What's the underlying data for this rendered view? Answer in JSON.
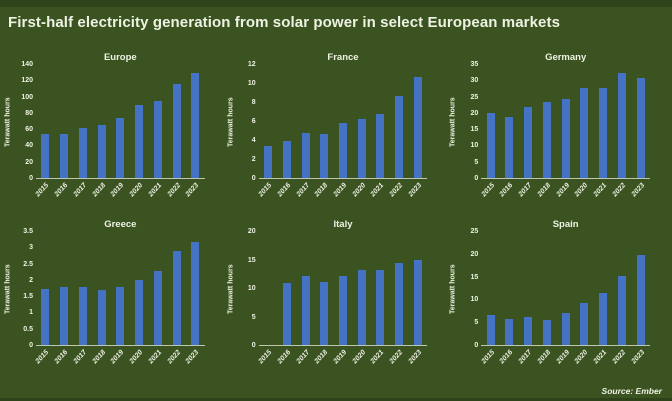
{
  "title": "First-half electricity generation from solar power in select European markets",
  "source": "Source: Ember",
  "colors": {
    "background": "#3B5321",
    "background_dark": "#2E431A",
    "bar": "#4472C4",
    "text": "#EEF2E3",
    "axis_line": "rgba(223,229,211,0.8)"
  },
  "chart_data": [
    {
      "type": "bar",
      "title": "Europe",
      "ylabel": "Terawatt hours",
      "xlabel": "",
      "ylim": [
        0,
        140
      ],
      "ytick_step": 20,
      "grid": false,
      "legend": "none",
      "categories": [
        "2015",
        "2016",
        "2017",
        "2018",
        "2019",
        "2020",
        "2021",
        "2022",
        "2023"
      ],
      "values": [
        55,
        54,
        62,
        66,
        74,
        90,
        96,
        117,
        130
      ]
    },
    {
      "type": "bar",
      "title": "France",
      "ylabel": "Terawatt hours",
      "xlabel": "",
      "ylim": [
        0,
        12
      ],
      "ytick_step": 2,
      "grid": false,
      "legend": "none",
      "categories": [
        "2015",
        "2016",
        "2017",
        "2018",
        "2019",
        "2020",
        "2021",
        "2022",
        "2023"
      ],
      "values": [
        3.4,
        3.9,
        4.8,
        4.7,
        5.8,
        6.3,
        6.8,
        8.7,
        10.7
      ]
    },
    {
      "type": "bar",
      "title": "Germany",
      "ylabel": "Terawatt hours",
      "xlabel": "",
      "ylim": [
        0,
        35
      ],
      "ytick_step": 5,
      "grid": false,
      "legend": "none",
      "categories": [
        "2015",
        "2016",
        "2017",
        "2018",
        "2019",
        "2020",
        "2021",
        "2022",
        "2023"
      ],
      "values": [
        20,
        19,
        22,
        23.5,
        24.5,
        28,
        28,
        32.5,
        31
      ]
    },
    {
      "type": "bar",
      "title": "Greece",
      "ylabel": "Terawatt hours",
      "xlabel": "",
      "ylim": [
        0,
        3.5
      ],
      "ytick_step": 0.5,
      "grid": false,
      "legend": "none",
      "categories": [
        "2015",
        "2016",
        "2017",
        "2018",
        "2019",
        "2020",
        "2021",
        "2022",
        "2023"
      ],
      "values": [
        1.75,
        1.8,
        1.8,
        1.7,
        1.8,
        2.0,
        2.3,
        2.9,
        3.2
      ]
    },
    {
      "type": "bar",
      "title": "Italy",
      "ylabel": "Terawatt hours",
      "xlabel": "",
      "ylim": [
        0,
        20
      ],
      "ytick_step": 5,
      "grid": false,
      "legend": "none",
      "categories": [
        "2015",
        "2016",
        "2017",
        "2018",
        "2019",
        "2020",
        "2021",
        "2022",
        "2023"
      ],
      "values": [
        null,
        11,
        12.2,
        11.1,
        12.2,
        13.3,
        13.2,
        14.6,
        15
      ]
    },
    {
      "type": "bar",
      "title": "Spain",
      "ylabel": "Terawatt hours",
      "xlabel": "",
      "ylim": [
        0,
        25
      ],
      "ytick_step": 5,
      "grid": false,
      "legend": "none",
      "categories": [
        "2015",
        "2016",
        "2017",
        "2018",
        "2019",
        "2020",
        "2021",
        "2022",
        "2023"
      ],
      "values": [
        6.6,
        5.8,
        6.2,
        5.5,
        7,
        9.2,
        11.5,
        15.3,
        20
      ]
    }
  ]
}
